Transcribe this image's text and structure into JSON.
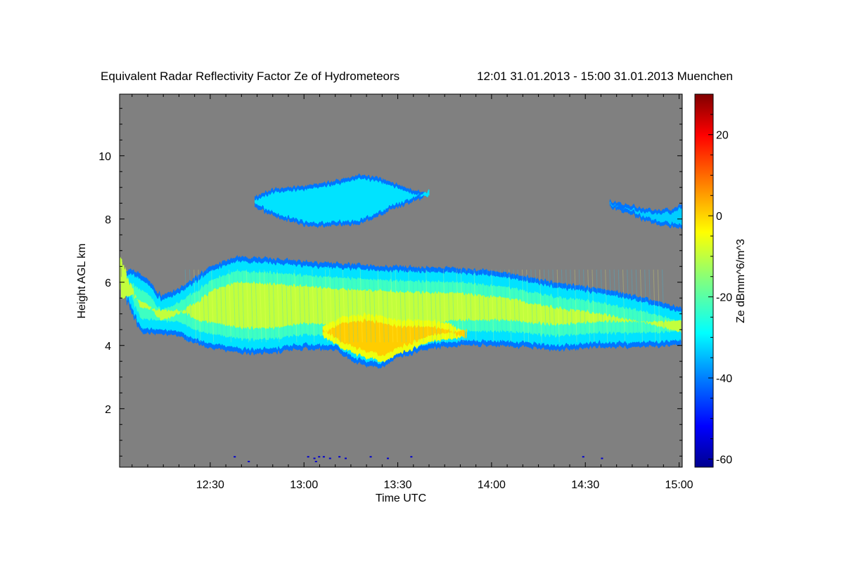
{
  "chart_data": {
    "type": "heatmap",
    "title": "Equivalent Radar Reflectivity Factor Ze of Hydrometeors",
    "subtitle": "12:01 31.01.2013 - 15:00 31.01.2013 Muenchen",
    "xlabel": "Time UTC",
    "ylabel": "Height AGL km",
    "colorbar_label": "Ze dBmm^6/m^3",
    "x_unit": "minutes after 12:00 UTC",
    "xlim": [
      1,
      181
    ],
    "ylim": [
      0.15,
      11.95
    ],
    "x_major_ticks": [
      {
        "value": 30,
        "label": "12:30"
      },
      {
        "value": 60,
        "label": "13:00"
      },
      {
        "value": 90,
        "label": "13:30"
      },
      {
        "value": 120,
        "label": "14:00"
      },
      {
        "value": 150,
        "label": "14:30"
      },
      {
        "value": 180,
        "label": "15:00"
      }
    ],
    "y_major_ticks": [
      {
        "value": 2,
        "label": "2"
      },
      {
        "value": 4,
        "label": "4"
      },
      {
        "value": 6,
        "label": "6"
      },
      {
        "value": 8,
        "label": "8"
      },
      {
        "value": 10,
        "label": "10"
      }
    ],
    "colorbar_range": [
      -62,
      30
    ],
    "colorbar_ticks": [
      {
        "value": 20,
        "label": "20"
      },
      {
        "value": 0,
        "label": "0"
      },
      {
        "value": -20,
        "label": "-20"
      },
      {
        "value": -40,
        "label": "-40"
      },
      {
        "value": -60,
        "label": "-60"
      }
    ],
    "background_color": "#808080",
    "colormap": [
      "#00008f",
      "#0000ff",
      "#0080ff",
      "#00ffff",
      "#80ff80",
      "#ffff00",
      "#ff8000",
      "#ff0000",
      "#800000"
    ],
    "echo_regions": [
      {
        "name": "main-stratiform-layer",
        "time_range": [
          1,
          181
        ],
        "top_km": [
          [
            1,
            6.3
          ],
          [
            5,
            6.4
          ],
          [
            10,
            6.1
          ],
          [
            14,
            5.6
          ],
          [
            20,
            5.8
          ],
          [
            26,
            6.2
          ],
          [
            30,
            6.5
          ],
          [
            38,
            6.8
          ],
          [
            50,
            6.75
          ],
          [
            70,
            6.6
          ],
          [
            90,
            6.5
          ],
          [
            110,
            6.45
          ],
          [
            125,
            6.3
          ],
          [
            140,
            6.0
          ],
          [
            155,
            5.8
          ],
          [
            170,
            5.5
          ],
          [
            181,
            5.2
          ]
        ],
        "base_km": [
          [
            1,
            6.1
          ],
          [
            5,
            5.0
          ],
          [
            8,
            4.4
          ],
          [
            14,
            4.35
          ],
          [
            20,
            4.3
          ],
          [
            26,
            4.0
          ],
          [
            32,
            3.9
          ],
          [
            40,
            3.75
          ],
          [
            50,
            3.75
          ],
          [
            60,
            3.9
          ],
          [
            70,
            3.85
          ],
          [
            75,
            3.5
          ],
          [
            80,
            3.35
          ],
          [
            85,
            3.3
          ],
          [
            90,
            3.6
          ],
          [
            100,
            3.9
          ],
          [
            110,
            4.0
          ],
          [
            125,
            4.0
          ],
          [
            140,
            3.85
          ],
          [
            155,
            3.95
          ],
          [
            170,
            3.95
          ],
          [
            181,
            4.0
          ]
        ],
        "core_dbz": -10,
        "edge_dbz": -40
      },
      {
        "name": "intense-core",
        "time_range": [
          66,
          112
        ],
        "top_km": [
          [
            66,
            4.6
          ],
          [
            72,
            4.9
          ],
          [
            80,
            5.0
          ],
          [
            90,
            4.8
          ],
          [
            100,
            4.8
          ],
          [
            106,
            4.7
          ],
          [
            112,
            4.4
          ]
        ],
        "base_km": [
          [
            66,
            4.3
          ],
          [
            72,
            3.9
          ],
          [
            80,
            3.6
          ],
          [
            86,
            3.5
          ],
          [
            92,
            3.8
          ],
          [
            100,
            4.1
          ],
          [
            106,
            4.2
          ],
          [
            112,
            4.3
          ]
        ],
        "core_dbz": 0
      },
      {
        "name": "upper-cloud-left",
        "time_range": [
          44,
          100
        ],
        "top_km": [
          [
            44,
            8.7
          ],
          [
            50,
            8.95
          ],
          [
            60,
            9.05
          ],
          [
            70,
            9.2
          ],
          [
            78,
            9.4
          ],
          [
            84,
            9.3
          ],
          [
            90,
            9.1
          ],
          [
            95,
            8.9
          ],
          [
            100,
            8.85
          ]
        ],
        "base_km": [
          [
            44,
            8.4
          ],
          [
            50,
            8.1
          ],
          [
            56,
            7.9
          ],
          [
            62,
            7.75
          ],
          [
            70,
            7.8
          ],
          [
            76,
            7.8
          ],
          [
            82,
            8.0
          ],
          [
            88,
            8.3
          ],
          [
            94,
            8.5
          ],
          [
            100,
            8.8
          ]
        ],
        "core_dbz": -30
      },
      {
        "name": "upper-cloud-right",
        "time_range": [
          158,
          181
        ],
        "top_km": [
          [
            158,
            8.6
          ],
          [
            165,
            8.4
          ],
          [
            172,
            8.3
          ],
          [
            178,
            8.3
          ],
          [
            181,
            8.5
          ]
        ],
        "base_km": [
          [
            158,
            8.4
          ],
          [
            163,
            8.2
          ],
          [
            168,
            8.0
          ],
          [
            174,
            7.8
          ],
          [
            181,
            7.7
          ]
        ],
        "core_dbz": -32
      }
    ],
    "speckles": [
      {
        "x": 37.5,
        "y": 0.5
      },
      {
        "x": 61,
        "y": 0.5
      },
      {
        "x": 63,
        "y": 0.45
      },
      {
        "x": 64.5,
        "y": 0.5
      },
      {
        "x": 66,
        "y": 0.5
      },
      {
        "x": 68,
        "y": 0.45
      },
      {
        "x": 71,
        "y": 0.5
      },
      {
        "x": 73,
        "y": 0.45
      },
      {
        "x": 81,
        "y": 0.5
      },
      {
        "x": 86.5,
        "y": 0.45
      },
      {
        "x": 94,
        "y": 0.5
      },
      {
        "x": 149,
        "y": 0.5
      },
      {
        "x": 155,
        "y": 0.45
      },
      {
        "x": 42,
        "y": 0.35
      },
      {
        "x": 63.5,
        "y": 0.35
      }
    ]
  }
}
